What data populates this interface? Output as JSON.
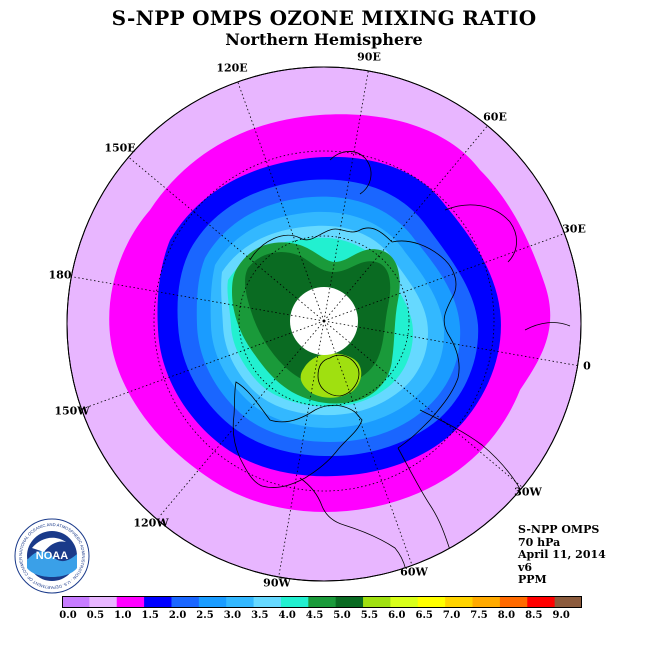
{
  "title": "S-NPP OMPS OZONE MIXING RATIO",
  "subtitle": "Northern Hemisphere",
  "longitude_labels": [
    "90E",
    "60E",
    "30E",
    "0",
    "30W",
    "60W",
    "90W",
    "120W",
    "150W",
    "180",
    "150E",
    "120E"
  ],
  "info": {
    "instrument": "S-NPP OMPS",
    "level": "70 hPa",
    "date": "April 11, 2014",
    "version": "v6",
    "units": "PPM"
  },
  "logo": {
    "name": "NOAA",
    "ring_text": "NATIONAL OCEANIC AND ATMOSPHERIC ADMINISTRATION · U.S. DEPARTMENT OF COMMERCE"
  },
  "colorbar": {
    "labels": [
      "0.0",
      "0.5",
      "1.0",
      "1.5",
      "2.0",
      "2.5",
      "3.0",
      "3.5",
      "4.0",
      "4.5",
      "5.0",
      "5.5",
      "6.0",
      "6.5",
      "7.0",
      "7.5",
      "8.0",
      "8.5",
      "9.0"
    ],
    "colors": [
      "#c77cff",
      "#e8b6ff",
      "#ff00ff",
      "#0000ff",
      "#1a66ff",
      "#1a9cff",
      "#33b8ff",
      "#66d9ff",
      "#22f0d0",
      "#1a9a3a",
      "#0a6b22",
      "#a0e010",
      "#d9ff1a",
      "#ffff00",
      "#ffd400",
      "#ffaa00",
      "#ff6a00",
      "#ff0000",
      "#8b5a3c"
    ]
  },
  "map": {
    "projection": "north polar stereographic",
    "no_data_color": "#ffffff",
    "background_color": "#e8b6ff"
  }
}
